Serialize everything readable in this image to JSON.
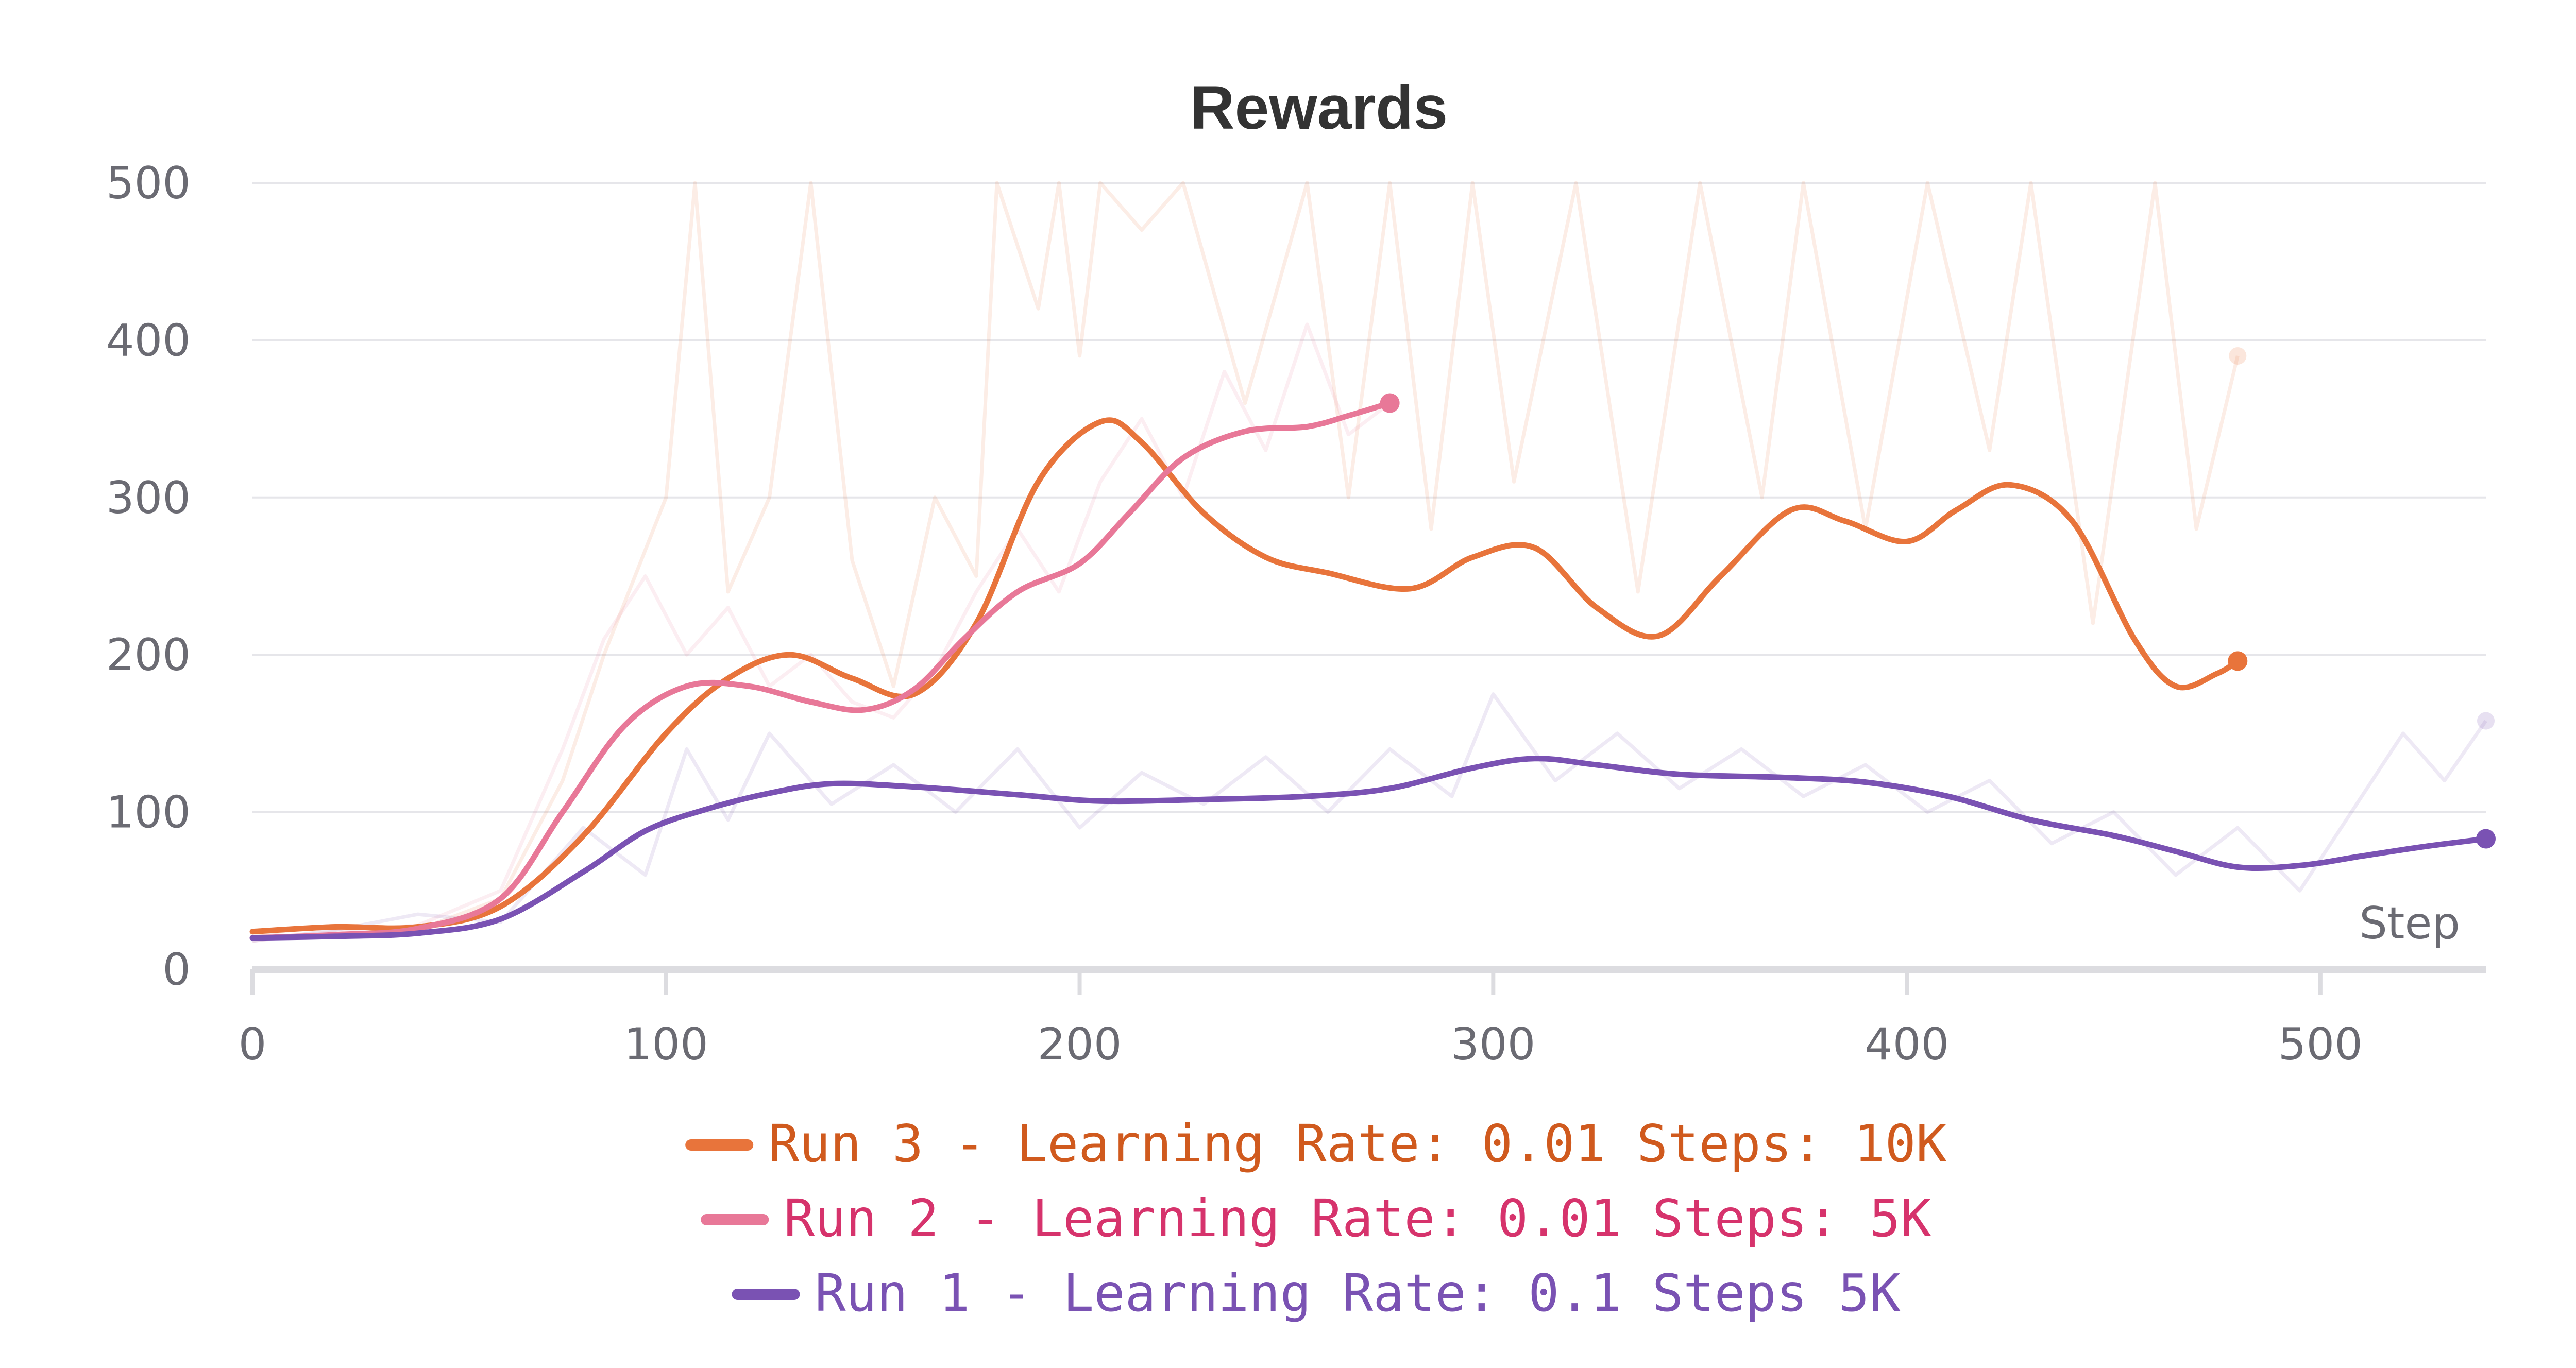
{
  "chart_data": {
    "type": "line",
    "title": "Rewards",
    "xlabel": "Step",
    "ylabel": "",
    "xlim": [
      0,
      540
    ],
    "ylim": [
      0,
      500
    ],
    "x_ticks": [
      "0",
      "100",
      "200",
      "300",
      "400",
      "500"
    ],
    "y_ticks": [
      "0",
      "100",
      "200",
      "300",
      "400",
      "500"
    ],
    "grid": true,
    "legend_position": "bottom-center",
    "series": [
      {
        "name": "Run 3 - Learning Rate: 0.01 Steps: 10K",
        "color": "#e8743b",
        "legend_text_color": "#d05a1e",
        "smoothed": [
          [
            0,
            24
          ],
          [
            20,
            27
          ],
          [
            40,
            27
          ],
          [
            60,
            40
          ],
          [
            80,
            85
          ],
          [
            100,
            150
          ],
          [
            115,
            185
          ],
          [
            130,
            200
          ],
          [
            145,
            185
          ],
          [
            160,
            175
          ],
          [
            175,
            220
          ],
          [
            190,
            310
          ],
          [
            205,
            348
          ],
          [
            215,
            335
          ],
          [
            230,
            290
          ],
          [
            245,
            262
          ],
          [
            260,
            252
          ],
          [
            280,
            242
          ],
          [
            295,
            262
          ],
          [
            310,
            268
          ],
          [
            325,
            230
          ],
          [
            340,
            212
          ],
          [
            355,
            250
          ],
          [
            372,
            292
          ],
          [
            385,
            285
          ],
          [
            400,
            272
          ],
          [
            412,
            292
          ],
          [
            425,
            308
          ],
          [
            440,
            285
          ],
          [
            455,
            210
          ],
          [
            465,
            180
          ],
          [
            475,
            188
          ],
          [
            480,
            196
          ]
        ],
        "raw": [
          [
            0,
            22
          ],
          [
            20,
            28
          ],
          [
            40,
            25
          ],
          [
            60,
            45
          ],
          [
            75,
            120
          ],
          [
            85,
            200
          ],
          [
            100,
            300
          ],
          [
            107,
            500
          ],
          [
            115,
            240
          ],
          [
            125,
            300
          ],
          [
            135,
            500
          ],
          [
            145,
            260
          ],
          [
            155,
            180
          ],
          [
            165,
            300
          ],
          [
            175,
            250
          ],
          [
            180,
            500
          ],
          [
            190,
            420
          ],
          [
            195,
            500
          ],
          [
            200,
            390
          ],
          [
            205,
            500
          ],
          [
            215,
            470
          ],
          [
            225,
            500
          ],
          [
            240,
            360
          ],
          [
            255,
            500
          ],
          [
            265,
            300
          ],
          [
            275,
            500
          ],
          [
            285,
            280
          ],
          [
            295,
            500
          ],
          [
            305,
            310
          ],
          [
            320,
            500
          ],
          [
            335,
            240
          ],
          [
            350,
            500
          ],
          [
            365,
            300
          ],
          [
            375,
            500
          ],
          [
            390,
            280
          ],
          [
            405,
            500
          ],
          [
            420,
            330
          ],
          [
            430,
            500
          ],
          [
            445,
            220
          ],
          [
            460,
            500
          ],
          [
            470,
            280
          ],
          [
            480,
            390
          ]
        ]
      },
      {
        "name": "Run 2 - Learning Rate: 0.01 Steps: 5K",
        "color": "#e87898",
        "legend_text_color": "#d6336c",
        "smoothed": [
          [
            0,
            20
          ],
          [
            20,
            22
          ],
          [
            40,
            26
          ],
          [
            60,
            45
          ],
          [
            75,
            100
          ],
          [
            90,
            155
          ],
          [
            105,
            180
          ],
          [
            120,
            180
          ],
          [
            135,
            170
          ],
          [
            148,
            165
          ],
          [
            160,
            178
          ],
          [
            172,
            210
          ],
          [
            185,
            240
          ],
          [
            200,
            258
          ],
          [
            212,
            290
          ],
          [
            225,
            325
          ],
          [
            240,
            342
          ],
          [
            255,
            345
          ],
          [
            265,
            352
          ],
          [
            275,
            360
          ]
        ],
        "raw": [
          [
            0,
            18
          ],
          [
            20,
            24
          ],
          [
            40,
            28
          ],
          [
            60,
            50
          ],
          [
            75,
            140
          ],
          [
            85,
            210
          ],
          [
            95,
            250
          ],
          [
            105,
            200
          ],
          [
            115,
            230
          ],
          [
            125,
            180
          ],
          [
            135,
            200
          ],
          [
            145,
            170
          ],
          [
            155,
            160
          ],
          [
            165,
            190
          ],
          [
            175,
            240
          ],
          [
            185,
            280
          ],
          [
            195,
            240
          ],
          [
            205,
            310
          ],
          [
            215,
            350
          ],
          [
            225,
            300
          ],
          [
            235,
            380
          ],
          [
            245,
            330
          ],
          [
            255,
            410
          ],
          [
            265,
            340
          ],
          [
            275,
            360
          ]
        ]
      },
      {
        "name": "Run 1 - Learning Rate: 0.1 Steps 5K",
        "color": "#7a52b3",
        "legend_text_color": "#7a52b3",
        "smoothed": [
          [
            0,
            20
          ],
          [
            20,
            21
          ],
          [
            40,
            23
          ],
          [
            60,
            32
          ],
          [
            80,
            62
          ],
          [
            95,
            88
          ],
          [
            110,
            102
          ],
          [
            125,
            112
          ],
          [
            140,
            118
          ],
          [
            160,
            116
          ],
          [
            185,
            111
          ],
          [
            205,
            107
          ],
          [
            230,
            108
          ],
          [
            255,
            110
          ],
          [
            275,
            115
          ],
          [
            295,
            128
          ],
          [
            310,
            134
          ],
          [
            325,
            130
          ],
          [
            345,
            124
          ],
          [
            370,
            122
          ],
          [
            390,
            119
          ],
          [
            410,
            110
          ],
          [
            430,
            95
          ],
          [
            450,
            85
          ],
          [
            465,
            75
          ],
          [
            480,
            65
          ],
          [
            495,
            66
          ],
          [
            510,
            72
          ],
          [
            525,
            78
          ],
          [
            540,
            83
          ]
        ],
        "raw": [
          [
            0,
            18
          ],
          [
            20,
            25
          ],
          [
            40,
            35
          ],
          [
            60,
            30
          ],
          [
            80,
            90
          ],
          [
            95,
            60
          ],
          [
            105,
            140
          ],
          [
            115,
            95
          ],
          [
            125,
            150
          ],
          [
            140,
            105
          ],
          [
            155,
            130
          ],
          [
            170,
            100
          ],
          [
            185,
            140
          ],
          [
            200,
            90
          ],
          [
            215,
            125
          ],
          [
            230,
            105
          ],
          [
            245,
            135
          ],
          [
            260,
            100
          ],
          [
            275,
            140
          ],
          [
            290,
            110
          ],
          [
            300,
            175
          ],
          [
            315,
            120
          ],
          [
            330,
            150
          ],
          [
            345,
            115
          ],
          [
            360,
            140
          ],
          [
            375,
            110
          ],
          [
            390,
            130
          ],
          [
            405,
            100
          ],
          [
            420,
            120
          ],
          [
            435,
            80
          ],
          [
            450,
            100
          ],
          [
            465,
            60
          ],
          [
            480,
            90
          ],
          [
            495,
            50
          ],
          [
            510,
            110
          ],
          [
            520,
            150
          ],
          [
            530,
            120
          ],
          [
            540,
            158
          ]
        ]
      }
    ]
  }
}
